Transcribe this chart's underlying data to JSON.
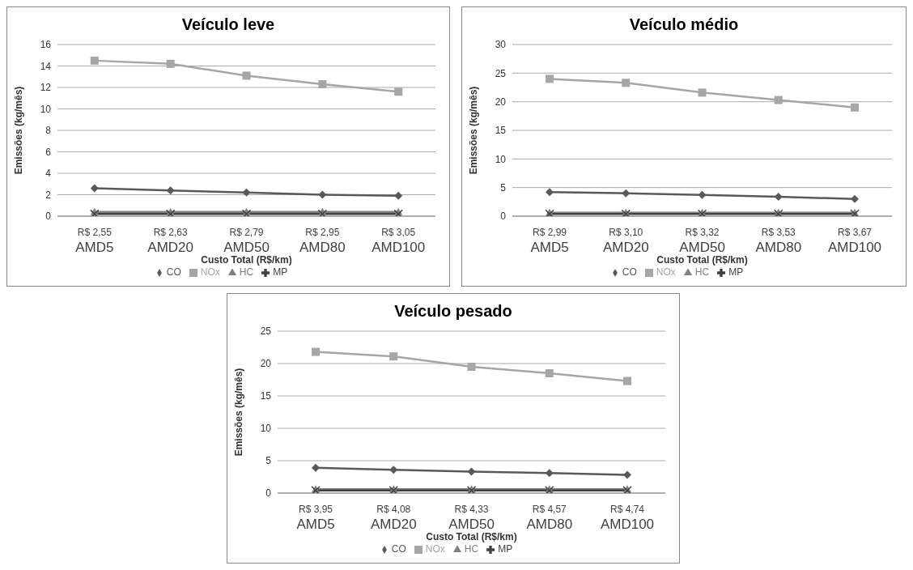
{
  "chart_data": [
    {
      "type": "line",
      "title": "Veículo leve",
      "xlabel": "Custo Total (R$/km)",
      "ylabel": "Emissões (kg/mês)",
      "categories": [
        "R$ 2,55\nAMD5",
        "R$ 2,63\nAMD20",
        "R$ 2,79\nAMD50",
        "R$ 2,95\nAMD80",
        "R$ 3,05\nAMD100"
      ],
      "series": [
        {
          "name": "CO",
          "color": "#595959",
          "marker": "diamond",
          "values": [
            2.6,
            2.4,
            2.2,
            2.0,
            1.9
          ]
        },
        {
          "name": "NOx",
          "color": "#a6a6a6",
          "marker": "square",
          "values": [
            14.5,
            14.2,
            13.1,
            12.3,
            11.6
          ]
        },
        {
          "name": "HC",
          "color": "#7f7f7f",
          "marker": "triangle",
          "values": [
            0.4,
            0.4,
            0.4,
            0.4,
            0.4
          ]
        },
        {
          "name": "MP",
          "color": "#404040",
          "marker": "cross",
          "values": [
            0.2,
            0.2,
            0.2,
            0.2,
            0.2
          ]
        }
      ],
      "ylim": [
        0,
        16
      ],
      "yticks": [
        0,
        2,
        4,
        6,
        8,
        10,
        12,
        14,
        16
      ],
      "grid": "y",
      "legend": "bottom"
    },
    {
      "type": "line",
      "title": "Veículo médio",
      "xlabel": "Custo Total (R$/km)",
      "ylabel": "Emissões (kg/mês)",
      "categories": [
        "R$ 2,99\nAMD5",
        "R$ 3,10\nAMD20",
        "R$ 3,32\nAMD50",
        "R$ 3,53\nAMD80",
        "R$ 3,67\nAMD100"
      ],
      "series": [
        {
          "name": "CO",
          "color": "#595959",
          "marker": "diamond",
          "values": [
            4.2,
            4.0,
            3.7,
            3.4,
            3.0
          ]
        },
        {
          "name": "NOx",
          "color": "#a6a6a6",
          "marker": "square",
          "values": [
            24.0,
            23.3,
            21.6,
            20.3,
            19.0
          ]
        },
        {
          "name": "HC",
          "color": "#7f7f7f",
          "marker": "triangle",
          "values": [
            0.6,
            0.6,
            0.6,
            0.6,
            0.6
          ]
        },
        {
          "name": "MP",
          "color": "#404040",
          "marker": "cross",
          "values": [
            0.4,
            0.4,
            0.4,
            0.4,
            0.4
          ]
        }
      ],
      "ylim": [
        0,
        30
      ],
      "yticks": [
        0,
        5,
        10,
        15,
        20,
        25,
        30
      ],
      "grid": "y",
      "legend": "bottom"
    },
    {
      "type": "line",
      "title": "Veículo pesado",
      "xlabel": "Custo Total (R$/km)",
      "ylabel": "Emissões (kg/mês)",
      "categories": [
        "R$ 3,95\nAMD5",
        "R$ 4,08\nAMD20",
        "R$ 4,33\nAMD50",
        "R$ 4,57\nAMD80",
        "R$ 4,74\nAMD100"
      ],
      "series": [
        {
          "name": "CO",
          "color": "#595959",
          "marker": "diamond",
          "values": [
            3.9,
            3.6,
            3.3,
            3.1,
            2.8
          ]
        },
        {
          "name": "NOx",
          "color": "#a6a6a6",
          "marker": "square",
          "values": [
            21.8,
            21.1,
            19.5,
            18.5,
            17.3
          ]
        },
        {
          "name": "HC",
          "color": "#7f7f7f",
          "marker": "triangle",
          "values": [
            0.6,
            0.6,
            0.6,
            0.6,
            0.6
          ]
        },
        {
          "name": "MP",
          "color": "#404040",
          "marker": "cross",
          "values": [
            0.4,
            0.4,
            0.4,
            0.4,
            0.4
          ]
        }
      ],
      "ylim": [
        0,
        25
      ],
      "yticks": [
        0,
        5,
        10,
        15,
        20,
        25
      ],
      "grid": "y",
      "legend": "bottom"
    }
  ]
}
